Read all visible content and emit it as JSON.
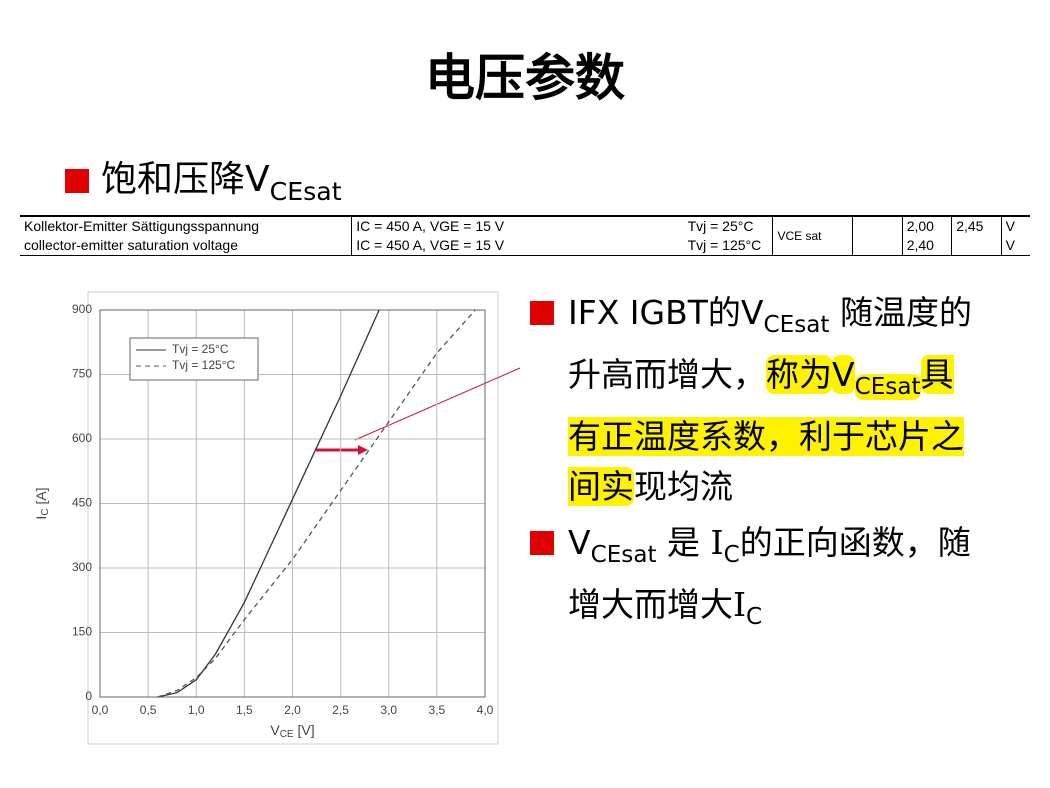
{
  "title": "电压参数",
  "heading": [
    "饱和压降V",
    "CEsat"
  ],
  "table": {
    "parameter": [
      "Kollektor-Emitter Sättigungsspannung",
      "collector-emitter saturation voltage"
    ],
    "conditions": [
      "IC = 450 A, VGE = 15 V",
      "IC = 450 A, VGE = 15 V"
    ],
    "temps": [
      "Tvj = 25°C",
      "Tvj = 125°C"
    ],
    "symbol": "VCE sat",
    "typ": [
      "2,00",
      "2,40"
    ],
    "max": "2,45",
    "units": [
      "V",
      "V"
    ]
  },
  "chart_data": {
    "type": "line",
    "x_label": [
      "V",
      "CE",
      " [V]"
    ],
    "y_label": [
      "I",
      "C",
      " [A]"
    ],
    "xlim": [
      0,
      4
    ],
    "ylim": [
      0,
      900
    ],
    "xticks": [
      {
        "value": 0,
        "label": "0,0"
      },
      {
        "value": 0.5,
        "label": "0,5"
      },
      {
        "value": 1,
        "label": "1,0"
      },
      {
        "value": 1.5,
        "label": "1,5"
      },
      {
        "value": 2,
        "label": "2,0"
      },
      {
        "value": 2.5,
        "label": "2,5"
      },
      {
        "value": 3,
        "label": "3,0"
      },
      {
        "value": 3.5,
        "label": "3,5"
      },
      {
        "value": 4,
        "label": "4,0"
      }
    ],
    "yticks": [
      0,
      150,
      300,
      450,
      600,
      750,
      900
    ],
    "grid": true,
    "series": [
      {
        "name": "Tvj = 25°C",
        "color": "#333333",
        "dash": "solid",
        "x": [
          0.6,
          0.8,
          1.0,
          1.2,
          1.5,
          2.0,
          2.5,
          2.9
        ],
        "y": [
          0,
          10,
          40,
          100,
          220,
          460,
          700,
          900
        ]
      },
      {
        "name": "Tvj = 125°C",
        "color": "#555555",
        "dash": "dashed",
        "x": [
          0.6,
          0.8,
          1.0,
          1.2,
          1.5,
          2.0,
          2.5,
          3.0,
          3.5,
          3.9
        ],
        "y": [
          0,
          15,
          45,
          90,
          180,
          320,
          480,
          640,
          800,
          900
        ]
      }
    ]
  },
  "bullets": [
    [
      "IFX IGBT的V",
      "CEsat",
      " 随温度的升高而增大，",
      "称为",
      "V",
      "CEsat",
      "具有正温度系数，利于芯片之间实",
      "现均流"
    ],
    [
      "V",
      "CEsat",
      " 是 I",
      "C",
      "的正向函数，随增大而增大I",
      "C"
    ]
  ]
}
